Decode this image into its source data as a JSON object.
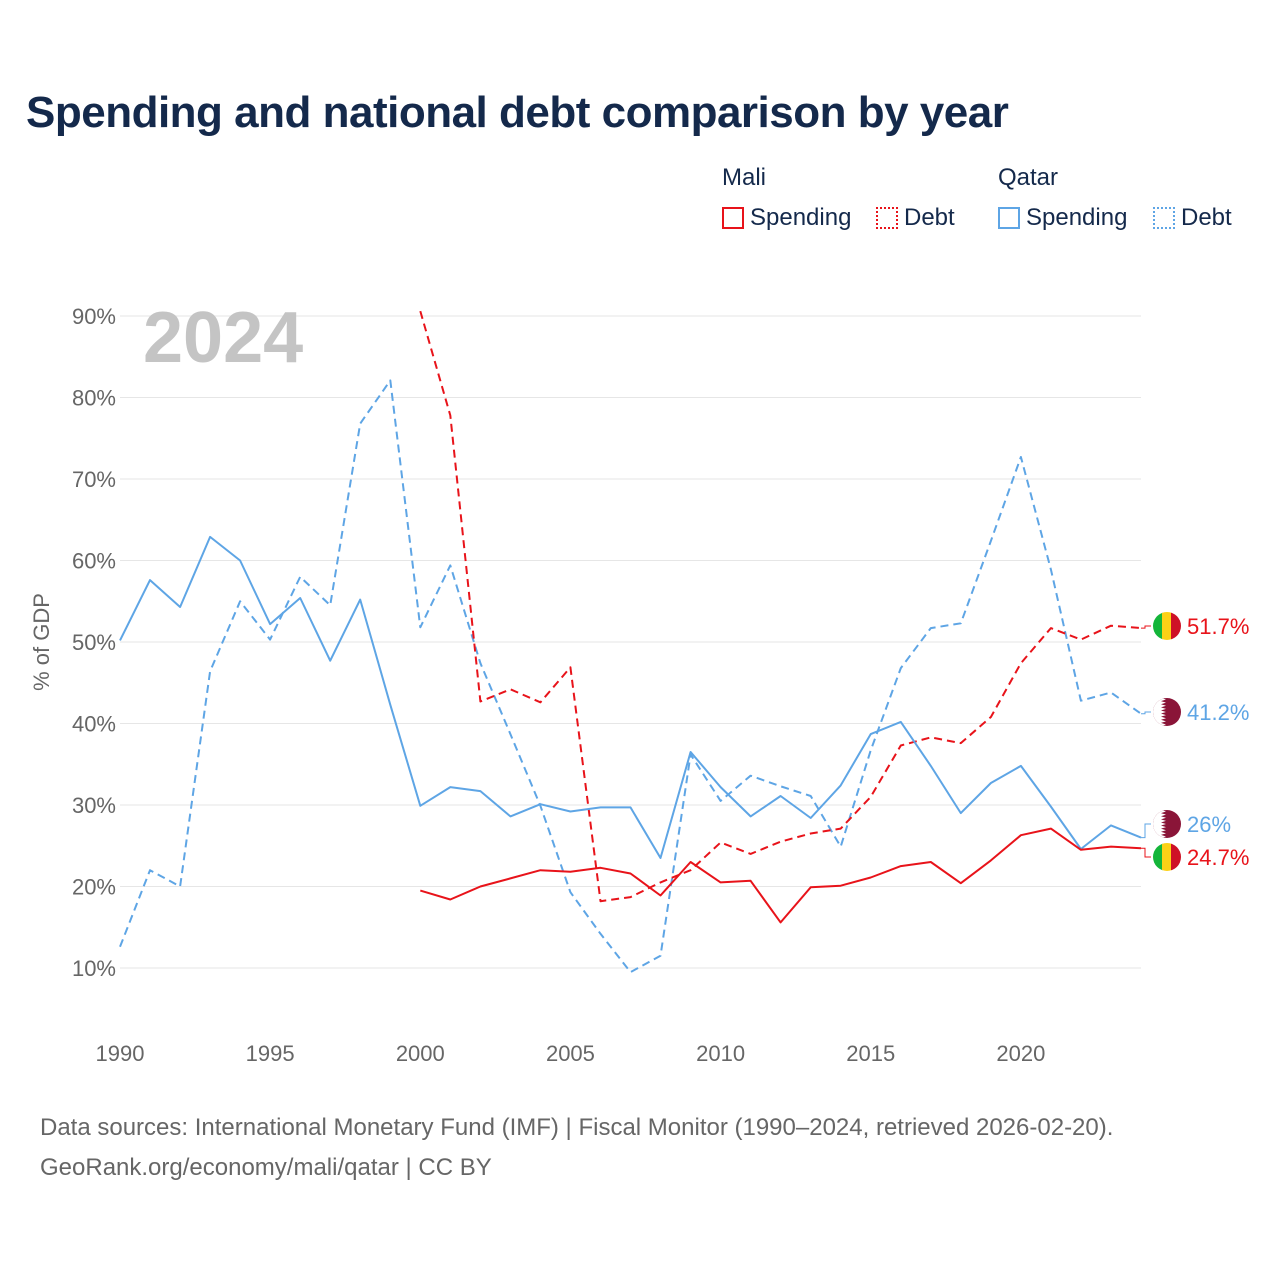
{
  "title": "Spending and national debt comparison by year",
  "year_badge": "2024",
  "legend": {
    "groups": [
      {
        "name": "Mali",
        "items": [
          {
            "label": "Spending",
            "style": "solid",
            "color": "#e8131a"
          },
          {
            "label": "Debt",
            "style": "dotted",
            "color": "#e8131a"
          }
        ]
      },
      {
        "name": "Qatar",
        "items": [
          {
            "label": "Spending",
            "style": "solid",
            "color": "#5ea5e5"
          },
          {
            "label": "Debt",
            "style": "dotted",
            "color": "#5ea5e5"
          }
        ]
      }
    ]
  },
  "sources": {
    "line1": "Data sources: International Monetary Fund (IMF) | Fiscal Monitor (1990–2024, retrieved 2026-02-20).",
    "line2": "GeoRank.org/economy/mali/qatar | CC BY"
  },
  "chart_data": {
    "type": "line",
    "title": "Spending and national debt comparison by year",
    "xlabel": "",
    "ylabel": "% of GDP",
    "xlim": [
      1990,
      2024
    ],
    "ylim": [
      5,
      95
    ],
    "y_ticks": [
      10,
      20,
      30,
      40,
      50,
      60,
      70,
      80,
      90
    ],
    "y_tick_labels": [
      "10%",
      "20%",
      "30%",
      "40%",
      "50%",
      "60%",
      "70%",
      "80%",
      "90%"
    ],
    "x_ticks": [
      1990,
      1995,
      2000,
      2005,
      2010,
      2015,
      2020
    ],
    "x_tick_labels": [
      "1990",
      "1995",
      "2000",
      "2005",
      "2010",
      "2015",
      "2020"
    ],
    "grid": true,
    "series": [
      {
        "name": "Qatar Spending",
        "country": "Qatar",
        "metric": "Spending",
        "color": "#5ea5e5",
        "dash": false,
        "x": [
          1990,
          1991,
          1992,
          1993,
          1994,
          1995,
          1996,
          1997,
          1998,
          1999,
          2000,
          2001,
          2002,
          2003,
          2004,
          2005,
          2006,
          2007,
          2008,
          2009,
          2010,
          2011,
          2012,
          2013,
          2014,
          2015,
          2016,
          2017,
          2018,
          2019,
          2020,
          2021,
          2022,
          2023,
          2024
        ],
        "values": [
          50.2,
          57.6,
          54.3,
          62.9,
          60.0,
          52.2,
          55.4,
          47.7,
          55.2,
          42.3,
          29.9,
          32.2,
          31.7,
          28.6,
          30.1,
          29.2,
          29.7,
          29.7,
          23.5,
          36.5,
          32.2,
          28.6,
          31.1,
          28.4,
          32.4,
          38.7,
          40.2,
          34.8,
          29.0,
          32.7,
          34.8,
          29.8,
          24.6,
          27.5,
          26.0
        ],
        "end_label": "26%"
      },
      {
        "name": "Qatar Debt",
        "country": "Qatar",
        "metric": "Debt",
        "color": "#5ea5e5",
        "dash": true,
        "x": [
          1990,
          1991,
          1992,
          1993,
          1994,
          1995,
          1996,
          1997,
          1998,
          1999,
          2000,
          2001,
          2002,
          2003,
          2004,
          2005,
          2006,
          2007,
          2008,
          2009,
          2010,
          2011,
          2012,
          2013,
          2014,
          2015,
          2016,
          2017,
          2018,
          2019,
          2020,
          2021,
          2022,
          2023,
          2024
        ],
        "values": [
          12.6,
          22.0,
          20.0,
          46.4,
          55.0,
          50.3,
          58.0,
          54.5,
          76.8,
          82.1,
          51.8,
          59.4,
          47.4,
          38.7,
          29.9,
          19.3,
          14.2,
          9.5,
          11.5,
          36.2,
          30.5,
          33.6,
          32.3,
          31.1,
          24.9,
          36.7,
          46.8,
          51.7,
          52.3,
          62.4,
          72.7,
          58.9,
          42.8,
          43.8,
          41.2
        ],
        "end_label": "41.2%"
      },
      {
        "name": "Mali Spending",
        "country": "Mali",
        "metric": "Spending",
        "color": "#e8131a",
        "dash": false,
        "x": [
          2000,
          2001,
          2002,
          2003,
          2004,
          2005,
          2006,
          2007,
          2008,
          2009,
          2010,
          2011,
          2012,
          2013,
          2014,
          2015,
          2016,
          2017,
          2018,
          2019,
          2020,
          2021,
          2022,
          2023,
          2024
        ],
        "values": [
          19.5,
          18.4,
          20.0,
          21.0,
          22.0,
          21.8,
          22.3,
          21.6,
          18.9,
          23.0,
          20.5,
          20.7,
          15.6,
          19.9,
          20.1,
          21.1,
          22.5,
          23.0,
          20.4,
          23.2,
          26.3,
          27.1,
          24.5,
          24.9,
          24.7
        ],
        "end_label": "24.7%"
      },
      {
        "name": "Mali Debt",
        "country": "Mali",
        "metric": "Debt",
        "color": "#e8131a",
        "dash": true,
        "x": [
          2000,
          2001,
          2002,
          2003,
          2004,
          2005,
          2006,
          2007,
          2008,
          2009,
          2010,
          2011,
          2012,
          2013,
          2014,
          2015,
          2016,
          2017,
          2018,
          2019,
          2020,
          2021,
          2022,
          2023,
          2024
        ],
        "values": [
          90.6,
          77.8,
          42.7,
          44.2,
          42.6,
          46.9,
          18.2,
          18.7,
          20.5,
          22.0,
          25.4,
          24.0,
          25.5,
          26.5,
          27.1,
          31.0,
          37.3,
          38.3,
          37.6,
          40.8,
          47.4,
          51.7,
          50.3,
          52.0,
          51.7
        ],
        "end_label": "51.7%"
      }
    ]
  }
}
